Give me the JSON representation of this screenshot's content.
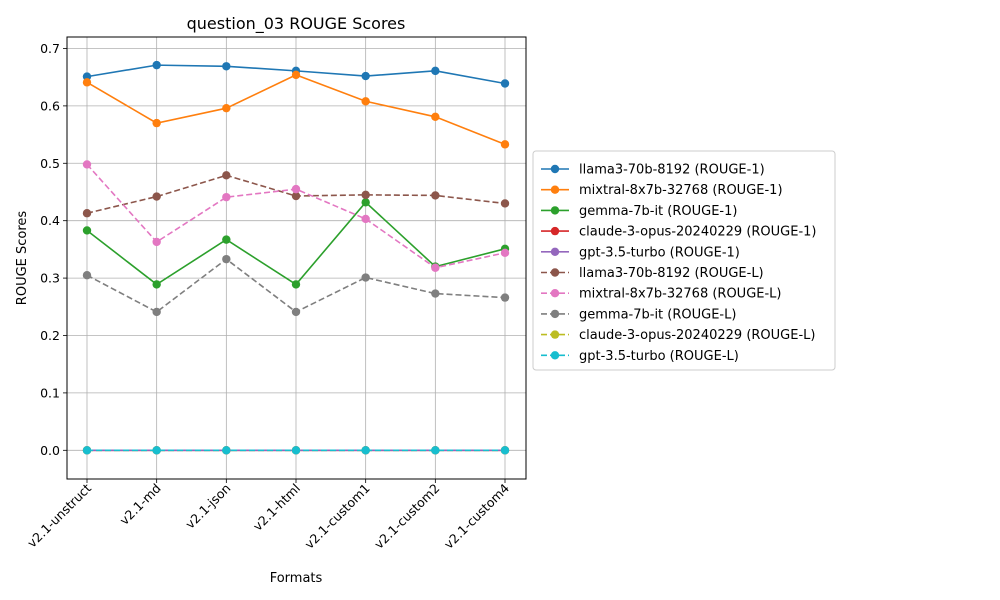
{
  "chart_data": {
    "type": "line",
    "title": "question_03 ROUGE Scores",
    "xlabel": "Formats",
    "ylabel": "ROUGE Scores",
    "categories": [
      "v2.1-unstruct",
      "v2.1-md",
      "v2.1-json",
      "v2.1-html",
      "v2.1-custom1",
      "v2.1-custom2",
      "v2.1-custom4"
    ],
    "ylim": [
      -0.05,
      0.72
    ],
    "yticks": [
      0.0,
      0.1,
      0.2,
      0.3,
      0.4,
      0.5,
      0.6,
      0.7
    ],
    "ytick_labels": [
      "0.0",
      "0.1",
      "0.2",
      "0.3",
      "0.4",
      "0.5",
      "0.6",
      "0.7"
    ],
    "grid": true,
    "legend_position": "center right, outside plot",
    "series": [
      {
        "name": "llama3-70b-8192 (ROUGE-1)",
        "color": "#1f77b4",
        "dashed": false,
        "values": [
          0.651,
          0.671,
          0.669,
          0.661,
          0.652,
          0.661,
          0.639
        ]
      },
      {
        "name": "mixtral-8x7b-32768 (ROUGE-1)",
        "color": "#ff7f0e",
        "dashed": false,
        "values": [
          0.641,
          0.57,
          0.596,
          0.654,
          0.608,
          0.581,
          0.533
        ]
      },
      {
        "name": "gemma-7b-it (ROUGE-1)",
        "color": "#2ca02c",
        "dashed": false,
        "values": [
          0.383,
          0.289,
          0.367,
          0.289,
          0.432,
          0.32,
          0.351
        ]
      },
      {
        "name": "claude-3-opus-20240229 (ROUGE-1)",
        "color": "#d62728",
        "dashed": false,
        "values": [
          0.0,
          0.0,
          0.0,
          0.0,
          0.0,
          0.0,
          0.0
        ]
      },
      {
        "name": "gpt-3.5-turbo (ROUGE-1)",
        "color": "#9467bd",
        "dashed": false,
        "values": [
          0.0,
          0.0,
          0.0,
          0.0,
          0.0,
          0.0,
          0.0
        ]
      },
      {
        "name": "llama3-70b-8192 (ROUGE-L)",
        "color": "#8c564b",
        "dashed": true,
        "values": [
          0.413,
          0.442,
          0.479,
          0.443,
          0.445,
          0.444,
          0.43
        ]
      },
      {
        "name": "mixtral-8x7b-32768 (ROUGE-L)",
        "color": "#e377c2",
        "dashed": true,
        "values": [
          0.498,
          0.363,
          0.441,
          0.455,
          0.403,
          0.318,
          0.344
        ]
      },
      {
        "name": "gemma-7b-it (ROUGE-L)",
        "color": "#7f7f7f",
        "dashed": true,
        "values": [
          0.305,
          0.241,
          0.333,
          0.241,
          0.301,
          0.273,
          0.266
        ]
      },
      {
        "name": "claude-3-opus-20240229 (ROUGE-L)",
        "color": "#bcbd22",
        "dashed": true,
        "values": [
          0.0,
          0.0,
          0.0,
          0.0,
          0.0,
          0.0,
          0.0
        ]
      },
      {
        "name": "gpt-3.5-turbo (ROUGE-L)",
        "color": "#17becf",
        "dashed": true,
        "values": [
          0.0,
          0.0,
          0.0,
          0.0,
          0.0,
          0.0,
          0.0
        ]
      }
    ]
  }
}
